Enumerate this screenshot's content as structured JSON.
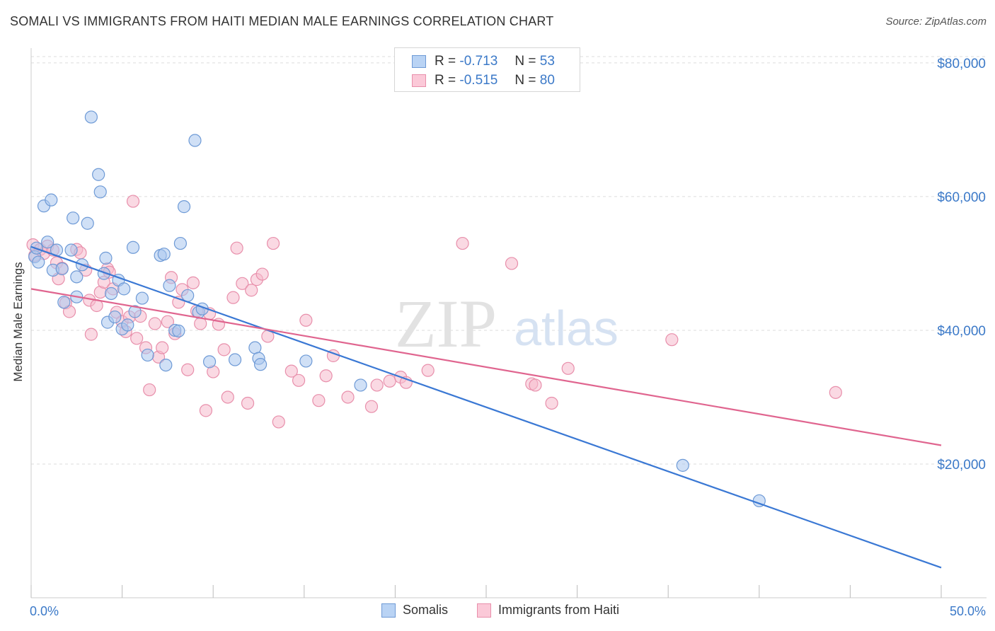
{
  "header": {
    "title": "SOMALI VS IMMIGRANTS FROM HAITI MEDIAN MALE EARNINGS CORRELATION CHART",
    "source": "Source: ZipAtlas.com"
  },
  "watermark": {
    "zip": "ZIP",
    "atlas": "atlas"
  },
  "legend": {
    "rows": [
      {
        "r_label": "R =",
        "r_value": "-0.713",
        "n_label": "N =",
        "n_value": "53"
      },
      {
        "r_label": "R =",
        "r_value": "-0.515",
        "n_label": "N =",
        "n_value": "80"
      }
    ]
  },
  "bottom_legend": {
    "items": [
      "Somalis",
      "Immigrants from Haiti"
    ]
  },
  "colors": {
    "somali_fill": "#a9c6ee",
    "somali_stroke": "#6e9ad6",
    "somali_line": "#3a78d4",
    "haiti_fill": "#f6b9cc",
    "haiti_stroke": "#e88fab",
    "haiti_line": "#e0658f",
    "tick_label": "#3b79c8",
    "grid": "#dddddd"
  },
  "chart_data": {
    "type": "scatter",
    "title": "SOMALI VS IMMIGRANTS FROM HAITI MEDIAN MALE EARNINGS CORRELATION CHART",
    "xlabel": "",
    "ylabel": "Median Male Earnings",
    "xlim": [
      0,
      50
    ],
    "ylim": [
      0,
      82000
    ],
    "x_tick_labels": [
      "0.0%",
      "50.0%"
    ],
    "y_ticks": [
      20000,
      40000,
      60000,
      80000
    ],
    "y_tick_labels": [
      "$20,000",
      "$40,000",
      "$60,000",
      "$80,000"
    ],
    "grid": true,
    "legend_position": "top-center",
    "series": [
      {
        "name": "Somalis",
        "r": -0.713,
        "n": 53,
        "trend": {
          "x": [
            0,
            50
          ],
          "y": [
            52500,
            4500
          ]
        },
        "points": [
          [
            0.2,
            51000
          ],
          [
            0.3,
            52300
          ],
          [
            0.4,
            50200
          ],
          [
            0.7,
            58600
          ],
          [
            0.9,
            53200
          ],
          [
            1.1,
            59500
          ],
          [
            1.4,
            52000
          ],
          [
            1.2,
            49000
          ],
          [
            1.7,
            49200
          ],
          [
            2.2,
            52000
          ],
          [
            2.3,
            56800
          ],
          [
            2.5,
            48000
          ],
          [
            2.8,
            49800
          ],
          [
            3.1,
            56000
          ],
          [
            3.3,
            71900
          ],
          [
            3.7,
            63300
          ],
          [
            3.8,
            60700
          ],
          [
            4.0,
            48500
          ],
          [
            4.1,
            50800
          ],
          [
            4.2,
            41200
          ],
          [
            4.4,
            45500
          ],
          [
            4.6,
            42000
          ],
          [
            4.8,
            47500
          ],
          [
            5.0,
            40200
          ],
          [
            5.1,
            46200
          ],
          [
            5.3,
            40800
          ],
          [
            5.6,
            52400
          ],
          [
            5.7,
            42800
          ],
          [
            6.1,
            44800
          ],
          [
            6.4,
            36300
          ],
          [
            7.1,
            51200
          ],
          [
            7.3,
            51400
          ],
          [
            7.4,
            34800
          ],
          [
            7.6,
            46700
          ],
          [
            7.9,
            40000
          ],
          [
            8.1,
            39900
          ],
          [
            8.2,
            53000
          ],
          [
            8.4,
            58500
          ],
          [
            8.6,
            45200
          ],
          [
            9.0,
            68400
          ],
          [
            9.2,
            42700
          ],
          [
            9.4,
            43200
          ],
          [
            9.8,
            35300
          ],
          [
            11.2,
            35600
          ],
          [
            12.3,
            37400
          ],
          [
            12.5,
            35800
          ],
          [
            12.6,
            34900
          ],
          [
            15.1,
            35400
          ],
          [
            18.1,
            31800
          ],
          [
            35.8,
            19800
          ],
          [
            40.0,
            14500
          ],
          [
            1.8,
            44200
          ],
          [
            2.5,
            45000
          ]
        ]
      },
      {
        "name": "Immigrants from Haiti",
        "r": -0.515,
        "n": 80,
        "trend": {
          "x": [
            0,
            50
          ],
          "y": [
            46200,
            22800
          ]
        },
        "points": [
          [
            0.1,
            52800
          ],
          [
            0.2,
            51200
          ],
          [
            0.5,
            52100
          ],
          [
            0.7,
            51500
          ],
          [
            0.9,
            52600
          ],
          [
            1.2,
            52000
          ],
          [
            1.4,
            50100
          ],
          [
            1.5,
            47700
          ],
          [
            1.7,
            49300
          ],
          [
            1.9,
            44100
          ],
          [
            2.1,
            42800
          ],
          [
            2.5,
            52100
          ],
          [
            2.7,
            51600
          ],
          [
            3.0,
            49000
          ],
          [
            3.2,
            44500
          ],
          [
            3.3,
            39400
          ],
          [
            3.6,
            43700
          ],
          [
            3.8,
            45700
          ],
          [
            4.0,
            47200
          ],
          [
            4.2,
            49200
          ],
          [
            4.3,
            48700
          ],
          [
            4.5,
            46200
          ],
          [
            4.7,
            42700
          ],
          [
            5.0,
            41300
          ],
          [
            5.2,
            39800
          ],
          [
            5.4,
            42000
          ],
          [
            5.6,
            59300
          ],
          [
            5.8,
            38800
          ],
          [
            6.0,
            42100
          ],
          [
            6.3,
            37400
          ],
          [
            6.5,
            31100
          ],
          [
            6.8,
            41000
          ],
          [
            7.0,
            36000
          ],
          [
            7.2,
            37400
          ],
          [
            7.5,
            41300
          ],
          [
            7.7,
            47900
          ],
          [
            7.9,
            39500
          ],
          [
            8.1,
            44200
          ],
          [
            8.3,
            46100
          ],
          [
            8.6,
            34100
          ],
          [
            8.9,
            47100
          ],
          [
            9.1,
            42900
          ],
          [
            9.3,
            41000
          ],
          [
            9.6,
            28000
          ],
          [
            9.8,
            42500
          ],
          [
            10.0,
            33800
          ],
          [
            10.3,
            40900
          ],
          [
            10.6,
            37100
          ],
          [
            10.8,
            30000
          ],
          [
            11.1,
            44900
          ],
          [
            11.3,
            52300
          ],
          [
            11.6,
            47000
          ],
          [
            11.9,
            29100
          ],
          [
            12.1,
            46000
          ],
          [
            12.4,
            47600
          ],
          [
            12.7,
            48400
          ],
          [
            13.0,
            39100
          ],
          [
            13.3,
            53000
          ],
          [
            13.6,
            26300
          ],
          [
            14.3,
            33900
          ],
          [
            14.7,
            32500
          ],
          [
            15.1,
            41500
          ],
          [
            15.8,
            29500
          ],
          [
            16.2,
            33200
          ],
          [
            16.6,
            36200
          ],
          [
            17.4,
            30000
          ],
          [
            18.7,
            28600
          ],
          [
            19.0,
            31800
          ],
          [
            19.7,
            32400
          ],
          [
            20.3,
            33000
          ],
          [
            20.6,
            32200
          ],
          [
            21.8,
            34000
          ],
          [
            23.7,
            53000
          ],
          [
            26.4,
            50000
          ],
          [
            27.5,
            32000
          ],
          [
            27.7,
            31800
          ],
          [
            28.6,
            29100
          ],
          [
            29.5,
            34300
          ],
          [
            35.2,
            38600
          ],
          [
            44.2,
            30700
          ]
        ]
      }
    ]
  }
}
